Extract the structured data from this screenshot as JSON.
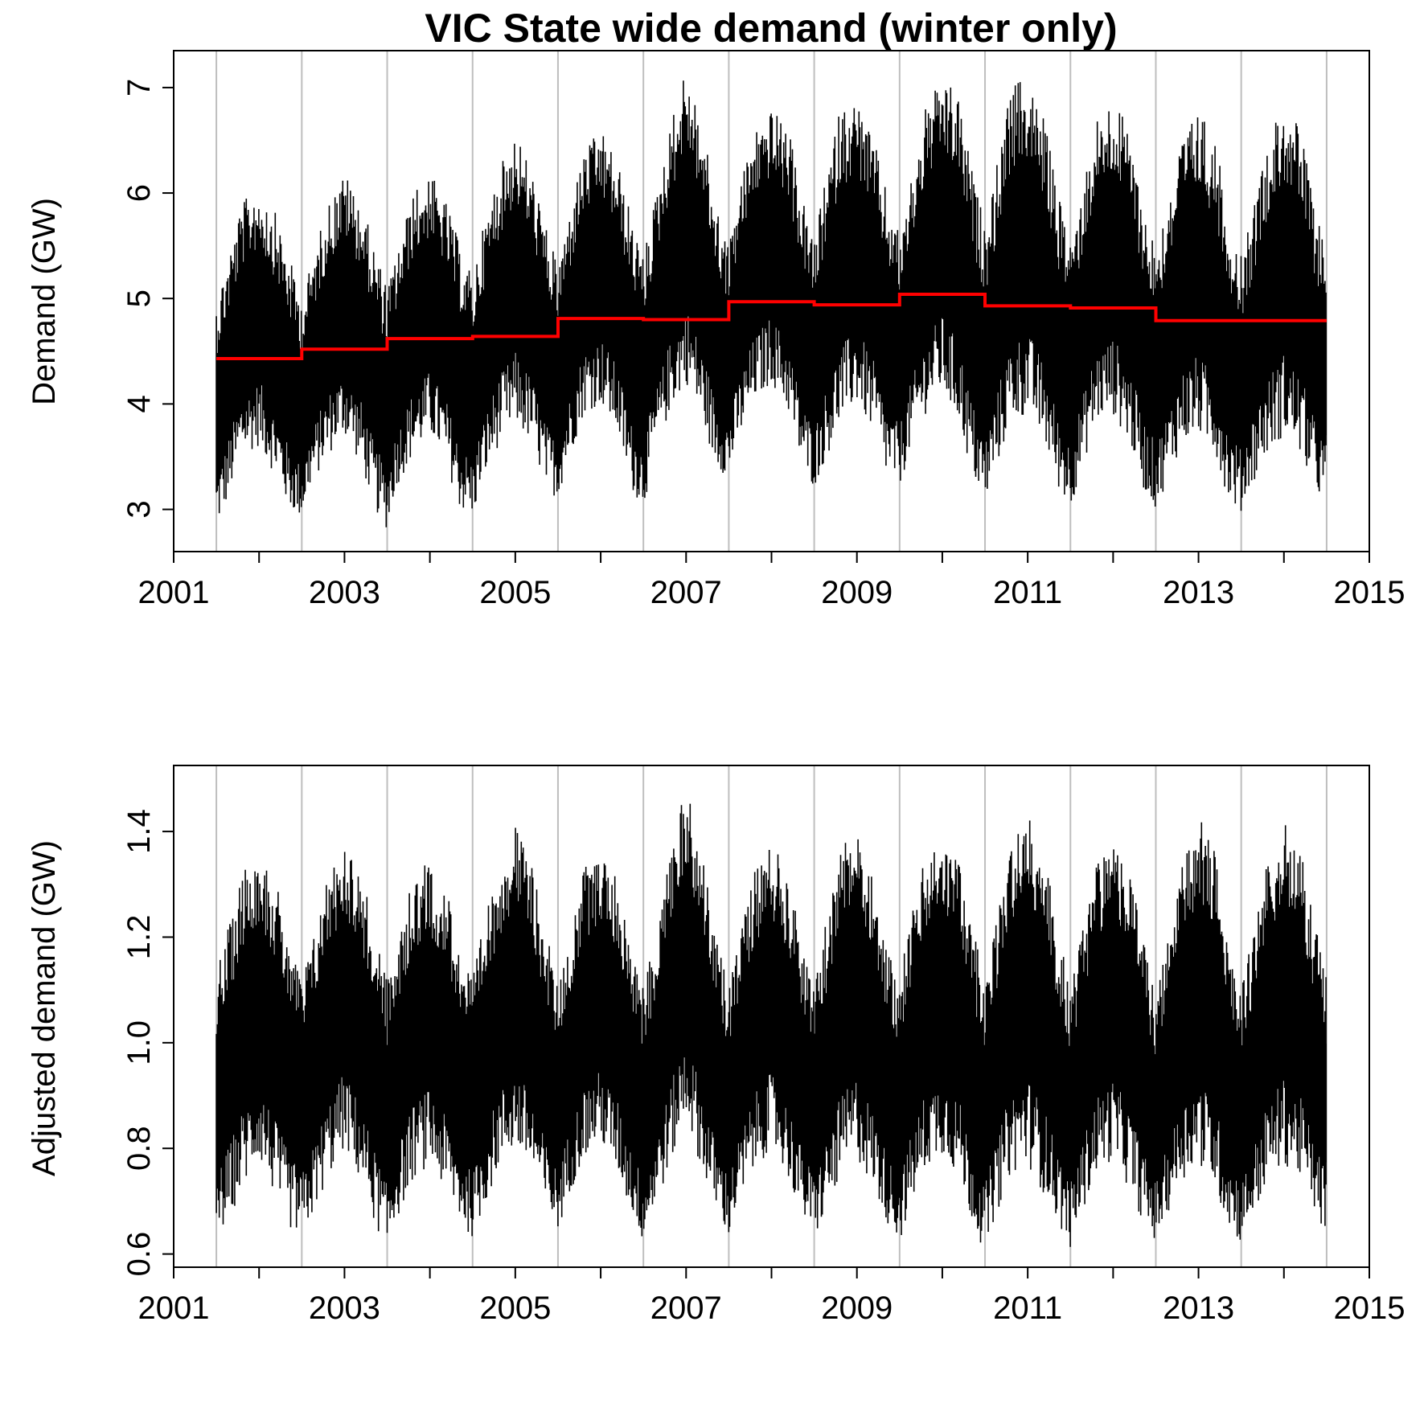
{
  "figure": {
    "title": "VIC State wide demand (winter only)"
  },
  "chart_data": [
    {
      "type": "line",
      "title": "VIC State wide demand (winter only)",
      "xlabel": "",
      "ylabel": "Demand (GW)",
      "xlim": [
        2001.0,
        2015.0
      ],
      "ylim": [
        2.6,
        7.35
      ],
      "x_ticks": [
        2001,
        2002,
        2003,
        2004,
        2005,
        2006,
        2007,
        2008,
        2009,
        2010,
        2011,
        2012,
        2013,
        2014,
        2015
      ],
      "x_tick_labels": [
        "2001",
        "",
        "2003",
        "",
        "2005",
        "",
        "2007",
        "",
        "2009",
        "",
        "2011",
        "",
        "2013",
        "",
        "2015"
      ],
      "y_ticks": [
        3,
        4,
        5,
        6,
        7
      ],
      "y_tick_labels": [
        "3",
        "4",
        "5",
        "6",
        "7"
      ],
      "grid": "vertical lines at each winter-season boundary",
      "gridlines_x": [
        2001.5,
        2002.5,
        2003.5,
        2004.5,
        2005.5,
        2006.5,
        2007.5,
        2008.5,
        2009.5,
        2010.5,
        2011.5,
        2012.5,
        2013.5,
        2014.5
      ],
      "grid_color": "#bebebe",
      "series": [
        {
          "kind": "band",
          "color": "#000000",
          "x": [
            2001.5,
            2001.6,
            2001.8,
            2002.0,
            2002.2,
            2002.35,
            2002.5,
            2002.6,
            2002.8,
            2003.0,
            2003.2,
            2003.35,
            2003.5,
            2003.6,
            2003.8,
            2004.0,
            2004.2,
            2004.35,
            2004.5,
            2004.6,
            2004.8,
            2005.0,
            2005.2,
            2005.35,
            2005.5,
            2005.6,
            2005.8,
            2006.0,
            2006.2,
            2006.35,
            2006.5,
            2006.6,
            2006.8,
            2007.0,
            2007.2,
            2007.35,
            2007.5,
            2007.6,
            2007.8,
            2008.0,
            2008.2,
            2008.35,
            2008.5,
            2008.6,
            2008.8,
            2009.0,
            2009.2,
            2009.35,
            2009.5,
            2009.6,
            2009.8,
            2010.0,
            2010.2,
            2010.35,
            2010.5,
            2010.6,
            2010.8,
            2011.0,
            2011.2,
            2011.35,
            2011.5,
            2011.6,
            2011.8,
            2012.0,
            2012.2,
            2012.35,
            2012.5,
            2012.6,
            2012.8,
            2013.0,
            2013.2,
            2013.35,
            2013.5,
            2013.6,
            2013.8,
            2014.0,
            2014.2,
            2014.35,
            2014.5
          ],
          "upper": [
            5.0,
            5.3,
            5.9,
            6.1,
            5.8,
            5.4,
            5.0,
            5.3,
            5.9,
            6.2,
            5.9,
            5.5,
            5.1,
            5.4,
            6.0,
            6.2,
            5.9,
            5.5,
            5.2,
            5.6,
            6.2,
            6.6,
            6.2,
            5.7,
            5.3,
            5.7,
            6.4,
            6.6,
            6.3,
            5.8,
            5.4,
            5.8,
            6.6,
            7.2,
            6.6,
            5.9,
            5.5,
            6.0,
            6.6,
            6.8,
            6.6,
            6.0,
            5.5,
            6.0,
            6.8,
            6.9,
            6.5,
            6.0,
            5.6,
            6.0,
            6.8,
            7.1,
            6.9,
            6.2,
            5.7,
            6.1,
            7.0,
            7.1,
            6.7,
            6.0,
            5.6,
            5.9,
            6.7,
            6.9,
            6.6,
            5.9,
            5.5,
            5.8,
            6.5,
            6.8,
            6.5,
            5.8,
            5.4,
            5.7,
            6.5,
            6.9,
            6.6,
            5.9,
            5.5
          ],
          "lower": [
            2.8,
            3.0,
            3.5,
            3.6,
            3.3,
            3.0,
            2.9,
            3.2,
            3.5,
            3.7,
            3.4,
            3.0,
            2.8,
            3.2,
            3.5,
            3.7,
            3.4,
            3.0,
            2.9,
            3.2,
            3.6,
            3.8,
            3.6,
            3.2,
            3.1,
            3.4,
            3.9,
            4.0,
            3.7,
            3.2,
            3.0,
            3.4,
            3.9,
            4.2,
            3.8,
            3.4,
            3.3,
            3.6,
            4.0,
            4.2,
            3.9,
            3.4,
            3.2,
            3.4,
            3.8,
            4.0,
            3.7,
            3.3,
            3.2,
            3.5,
            3.9,
            4.1,
            3.8,
            3.3,
            3.0,
            3.3,
            3.8,
            3.9,
            3.6,
            3.2,
            3.0,
            3.3,
            3.8,
            3.9,
            3.6,
            3.2,
            3.0,
            3.2,
            3.6,
            3.7,
            3.5,
            3.1,
            2.95,
            3.2,
            3.5,
            3.7,
            3.5,
            3.2,
            3.0
          ]
        },
        {
          "kind": "step",
          "color": "#ff0000",
          "x": [
            2001.5,
            2002.5,
            2003.5,
            2004.5,
            2005.5,
            2006.5,
            2007.5,
            2008.5,
            2009.5,
            2010.5,
            2011.5,
            2012.5,
            2013.5,
            2014.5
          ],
          "values": [
            4.43,
            4.52,
            4.62,
            4.64,
            4.81,
            4.8,
            4.97,
            4.94,
            5.04,
            4.93,
            4.91,
            4.79,
            4.79,
            4.79
          ]
        }
      ]
    },
    {
      "type": "line",
      "title": "",
      "xlabel": "",
      "ylabel": "Adjusted demand (GW)",
      "xlim": [
        2001.0,
        2015.0
      ],
      "ylim": [
        0.575,
        1.525
      ],
      "x_ticks": [
        2001,
        2002,
        2003,
        2004,
        2005,
        2006,
        2007,
        2008,
        2009,
        2010,
        2011,
        2012,
        2013,
        2014,
        2015
      ],
      "x_tick_labels": [
        "2001",
        "",
        "2003",
        "",
        "2005",
        "",
        "2007",
        "",
        "2009",
        "",
        "2011",
        "",
        "2013",
        "",
        "2015"
      ],
      "y_ticks": [
        0.6,
        0.8,
        1.0,
        1.2,
        1.4
      ],
      "y_tick_labels": [
        "0.6",
        "0.8",
        "1.0",
        "1.2",
        "1.4"
      ],
      "grid": "vertical lines at each winter-season boundary",
      "gridlines_x": [
        2001.5,
        2002.5,
        2003.5,
        2004.5,
        2005.5,
        2006.5,
        2007.5,
        2008.5,
        2009.5,
        2010.5,
        2011.5,
        2012.5,
        2013.5,
        2014.5
      ],
      "grid_color": "#bebebe",
      "series": [
        {
          "kind": "band",
          "color": "#000000",
          "x": [
            2001.5,
            2001.6,
            2001.8,
            2002.0,
            2002.2,
            2002.35,
            2002.5,
            2002.6,
            2002.8,
            2003.0,
            2003.2,
            2003.35,
            2003.5,
            2003.6,
            2003.8,
            2004.0,
            2004.2,
            2004.35,
            2004.5,
            2004.6,
            2004.8,
            2005.0,
            2005.2,
            2005.35,
            2005.5,
            2005.6,
            2005.8,
            2006.0,
            2006.2,
            2006.35,
            2006.5,
            2006.6,
            2006.8,
            2007.0,
            2007.2,
            2007.35,
            2007.5,
            2007.6,
            2007.8,
            2008.0,
            2008.2,
            2008.35,
            2008.5,
            2008.6,
            2008.8,
            2009.0,
            2009.2,
            2009.35,
            2009.5,
            2009.6,
            2009.8,
            2010.0,
            2010.2,
            2010.35,
            2010.5,
            2010.6,
            2010.8,
            2011.0,
            2011.2,
            2011.35,
            2011.5,
            2011.6,
            2011.8,
            2012.0,
            2012.2,
            2012.35,
            2012.5,
            2012.6,
            2012.8,
            2013.0,
            2013.2,
            2013.35,
            2013.5,
            2013.6,
            2013.8,
            2014.0,
            2014.2,
            2014.35,
            2014.5
          ],
          "upper": [
            1.14,
            1.19,
            1.33,
            1.38,
            1.3,
            1.21,
            1.12,
            1.18,
            1.32,
            1.39,
            1.32,
            1.22,
            1.12,
            1.18,
            1.31,
            1.35,
            1.29,
            1.19,
            1.12,
            1.2,
            1.34,
            1.42,
            1.33,
            1.22,
            1.11,
            1.18,
            1.33,
            1.37,
            1.31,
            1.2,
            1.1,
            1.18,
            1.36,
            1.49,
            1.36,
            1.2,
            1.11,
            1.2,
            1.33,
            1.38,
            1.32,
            1.2,
            1.1,
            1.2,
            1.36,
            1.43,
            1.32,
            1.18,
            1.12,
            1.22,
            1.35,
            1.4,
            1.35,
            1.22,
            1.12,
            1.2,
            1.38,
            1.44,
            1.36,
            1.22,
            1.1,
            1.18,
            1.35,
            1.39,
            1.33,
            1.2,
            1.09,
            1.16,
            1.33,
            1.43,
            1.36,
            1.2,
            1.11,
            1.18,
            1.34,
            1.43,
            1.36,
            1.24,
            1.14
          ],
          "lower": [
            0.63,
            0.65,
            0.72,
            0.78,
            0.7,
            0.65,
            0.63,
            0.66,
            0.74,
            0.8,
            0.73,
            0.66,
            0.6,
            0.66,
            0.74,
            0.77,
            0.71,
            0.66,
            0.63,
            0.67,
            0.76,
            0.8,
            0.75,
            0.68,
            0.64,
            0.7,
            0.78,
            0.81,
            0.75,
            0.68,
            0.62,
            0.67,
            0.76,
            0.86,
            0.75,
            0.68,
            0.63,
            0.68,
            0.76,
            0.8,
            0.74,
            0.67,
            0.63,
            0.66,
            0.74,
            0.78,
            0.72,
            0.66,
            0.62,
            0.67,
            0.76,
            0.79,
            0.74,
            0.66,
            0.6,
            0.66,
            0.75,
            0.77,
            0.71,
            0.66,
            0.61,
            0.66,
            0.75,
            0.78,
            0.72,
            0.66,
            0.62,
            0.66,
            0.74,
            0.77,
            0.72,
            0.65,
            0.62,
            0.65,
            0.73,
            0.77,
            0.74,
            0.68,
            0.63
          ]
        }
      ]
    }
  ]
}
